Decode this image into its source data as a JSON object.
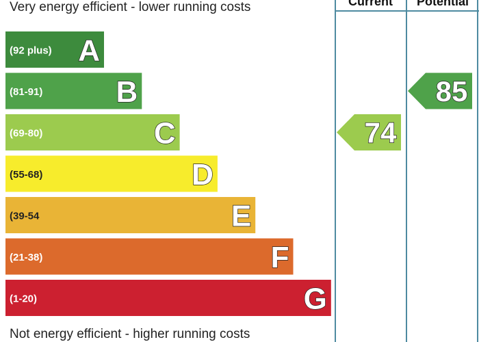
{
  "headings": {
    "top": "Very energy efficient - lower running costs",
    "bottom": "Not energy efficient - higher running costs"
  },
  "columns": {
    "current": "Current",
    "potential": "Potential"
  },
  "chart_data": {
    "type": "bar",
    "categories": [
      "A",
      "B",
      "C",
      "D",
      "E",
      "F",
      "G"
    ],
    "ranges": [
      "(92 plus)",
      "(81-91)",
      "(69-80)",
      "(55-68)",
      "(39-54",
      "(21-38)",
      "(1-20)"
    ],
    "colors": [
      "#3d8b3d",
      "#4fa24a",
      "#9ccb4e",
      "#f7ec2c",
      "#e9b436",
      "#dc6a2c",
      "#cc2030"
    ],
    "current": {
      "value": 74,
      "band": "C",
      "color": "#9ccb4e"
    },
    "potential": {
      "value": 85,
      "band": "B",
      "color": "#4fa24a"
    },
    "title": "",
    "xlabel": "",
    "ylabel": ""
  }
}
